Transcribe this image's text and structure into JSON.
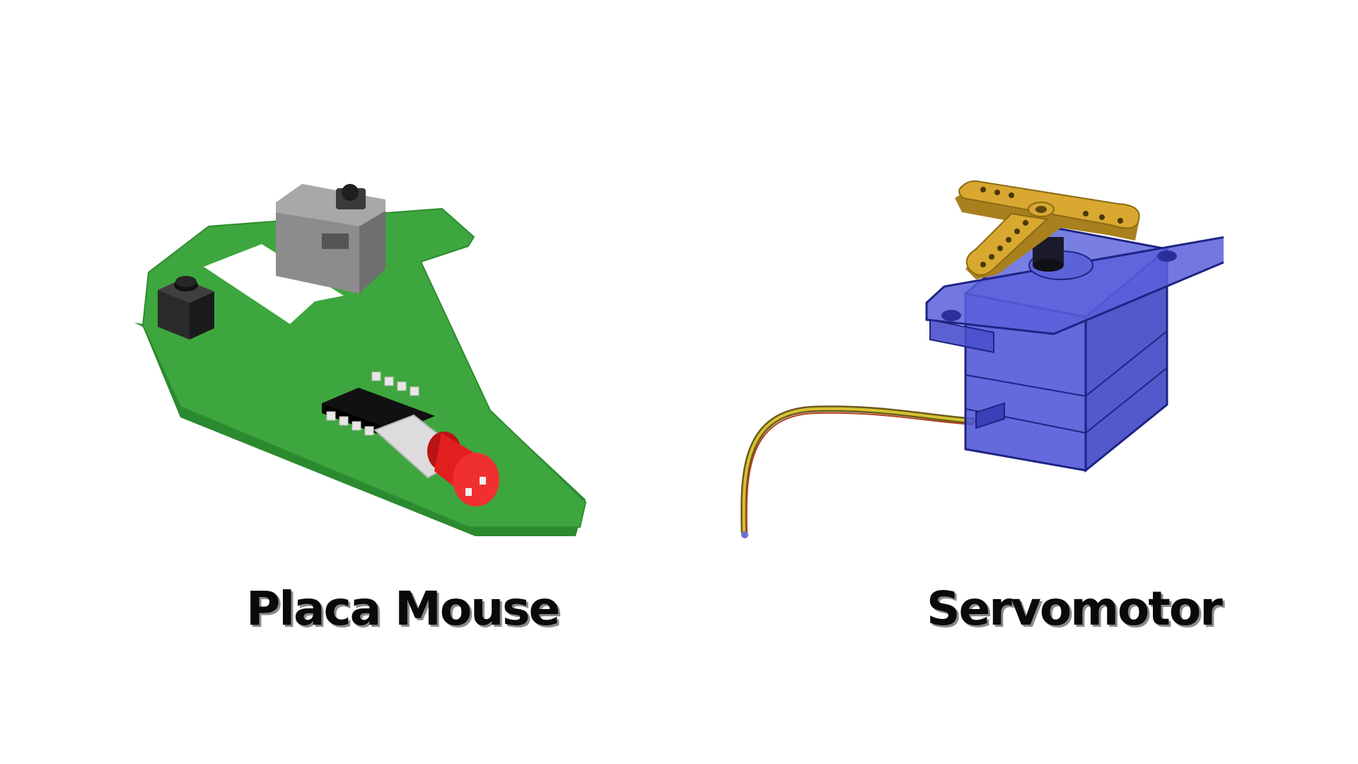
{
  "captions": {
    "left": "Placa Mouse",
    "right": "Servomotor"
  },
  "colors": {
    "pcb_green": "#3ea63e",
    "pcb_edge": "#2b8a2f",
    "led_red": "#e31e1e",
    "chip_black": "#1a1a1a",
    "switch_gray": "#8f8f8f",
    "servo_blue": "#4f55d6",
    "servo_edge": "#1e2385",
    "horn_gold": "#d8a830",
    "caption_text": "#0a0a0a",
    "caption_shadow": "#8a8a8a"
  },
  "icons": {
    "left": "pcb-mouse-board-illustration",
    "right": "servo-motor-illustration"
  }
}
